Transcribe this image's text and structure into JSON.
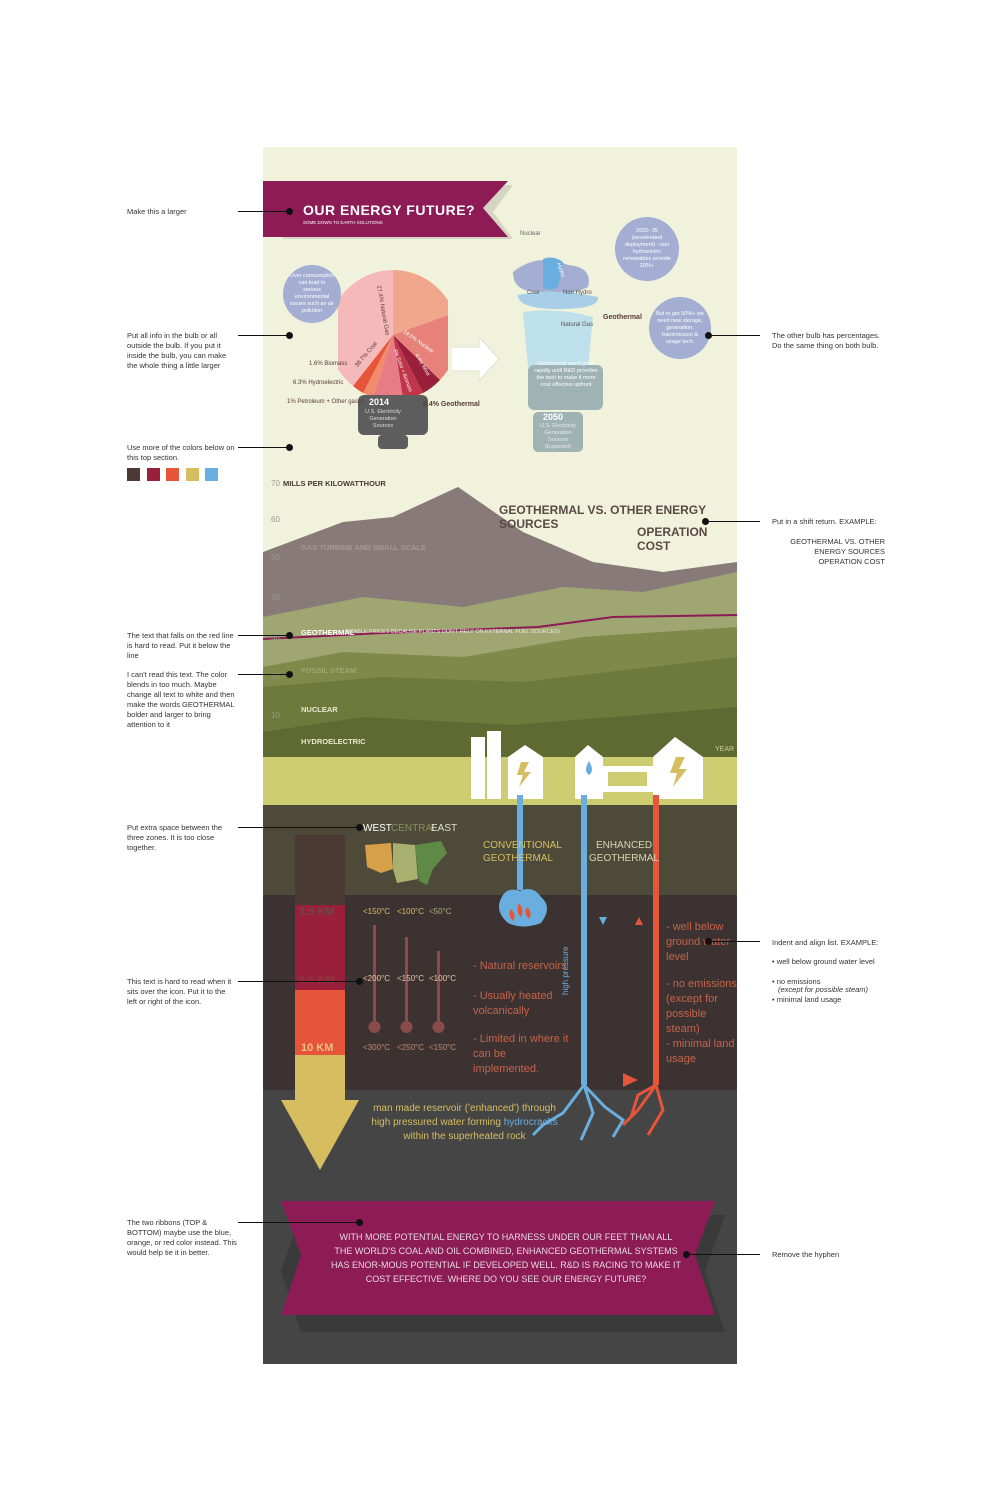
{
  "poster": {
    "title": "OUR ENERGY FUTURE?",
    "subtitle": "SOME DOWN TO EARTH SOLUTIONS",
    "bulb2014": {
      "year": "2014",
      "caption": "U.S. Electricity Generation Sources",
      "bubble": "Over consumption can lead to serious environmental issues such as air pollution",
      "labels": {
        "natural_gas": "27.4% Natural Gas",
        "coal": "38.7% Coal",
        "nuclear": "19.5% Nuclear",
        "wind": "4.4% Wind",
        "solar": ".4% Solar + Biomass",
        "biomass": "1.6% Biomass",
        "hydro": "6.3% Hydroelectric",
        "petroleum": "1% Petroleum + Other gases",
        "geothermal": "0.4% Geothermal"
      }
    },
    "bulb2050": {
      "year": "2050",
      "caption": "U.S. Electricity Generation Sources (Expected)",
      "labels": {
        "nuclear": "Nuclear",
        "hydro": "Hydro",
        "coal": "Coal",
        "non_hydro": "Non Hydro",
        "geothermal": "Geothermal",
        "natural_gas": "Natural Gas"
      },
      "bubble_top": "2020- 35 (accelerated deployment) - non hydroeletric renewables provide 20%+",
      "bubble_right": "But to get 50%+ we need new storage, generation, transmission & usage tech.",
      "note": "Geothermal won't grow rapidly until R&D provides the tech to make it more cost effective upfront"
    },
    "chart": {
      "ylabel": "MILLS PER KILOWATTHOUR",
      "ticks": [
        "70",
        "60",
        "50",
        "40",
        "30",
        "20",
        "10"
      ],
      "title_line1": "GEOTHERMAL VS. OTHER ENERGY SOURCES",
      "title_line2": "OPERATION COST",
      "bands": {
        "gas": "GAS TURBINE AND SMALL SCALE",
        "geothermal": "GEOTHERMAL",
        "geothermal_note": "(STABLE PRICES BECAUSE PLANTS DON'T RELY ON EXTERNAL FUEL SOURCES)",
        "fossil": "FOSSIL STEAM",
        "nuclear": "NUCLEAR",
        "hydro": "HYDROELECTRIC"
      },
      "year_label": "YEAR"
    },
    "underground": {
      "zones": [
        "WEST",
        "CENTRAL",
        "EAST"
      ],
      "depths": [
        "3.5 KM",
        "5.5 KM",
        "10 KM"
      ],
      "temps_top": [
        "<150°C",
        "<100°C",
        "<50°C"
      ],
      "temps_mid": [
        "<200°C",
        "<150°C",
        "<100°C"
      ],
      "temps_bottom": [
        "<300°C",
        "<250°C",
        "<150°C"
      ],
      "conventional": "CONVENTIONAL GEOTHERMAL",
      "enhanced": "ENHANCED GEOTHERMAL",
      "conventional_bullets": [
        "- Natural reservoirs",
        "- Usually heated volcanically",
        "- Limited in where it can be implemented."
      ],
      "enhanced_bullets": [
        "- well below ground water level",
        "- no emissions (except for possible steam)",
        "- minimal land usage"
      ],
      "pressure_label": "high pressure",
      "reservoir_text_1": "man made reservoir ('enhanced') through",
      "reservoir_text_2": "high pressured water forming",
      "reservoir_word": "hydrocracks",
      "reservoir_text_3": "within the superheated rock"
    },
    "bottom_ribbon": "WITH MORE POTENTIAL ENERGY TO HARNESS UNDER OUR FEET THAN ALL THE WORLD'S COAL AND OIL COMBINED, ENHANCED GEOTHERMAL SYSTEMS HAS ENOR-MOUS POTENTIAL IF DEVELOPED WELL. R&D IS RACING TO MAKE IT COST EFFECTIVE. WHERE DO YOU SEE OUR ENERGY FUTURE?"
  },
  "notes": {
    "larger": "Make this a larger",
    "bulb_info": "Put all info in the bulb or all outside the bulb. If you put it inside the bulb, you can make the whole thing a little larger",
    "colors": "Use more of the colors below on this top section.",
    "other_bulb": "The other bulb has percentages. Do the same thing on both bulb.",
    "shift_return": "Put in a shift return. EXAMPLE:",
    "shift_example": "GEOTHERMAL VS. OTHER ENERGY SOURCES OPERATION COST",
    "red_line": "The text that falls on the red line is hard to read. Put it below the line",
    "cant_read": "I can't read this text. The color blends in too much. Maybe change all text to white and then make the words GEOTHERMAL bolder and larger to bring attention to it",
    "extra_space": "Put extra space between the three zones. It is too close together.",
    "hard_icon": "This text is hard to read when it sits over the icon. Put it to the left or right of the icon.",
    "indent": "Indent and align list. EXAMPLE:",
    "indent_items": [
      "• well below ground water level",
      "• no emissions",
      "(except for possible steam)",
      "• minimal land usage"
    ],
    "ribbons": "The two ribbons (TOP & BOTTOM) maybe use the blue, orange, or red color instead. This would help tie it in better.",
    "hyphen": "Remove the hyphen"
  },
  "palette": [
    "#4a3a33",
    "#9a1f3b",
    "#e6543a",
    "#d6bd5f",
    "#6aaedf"
  ]
}
